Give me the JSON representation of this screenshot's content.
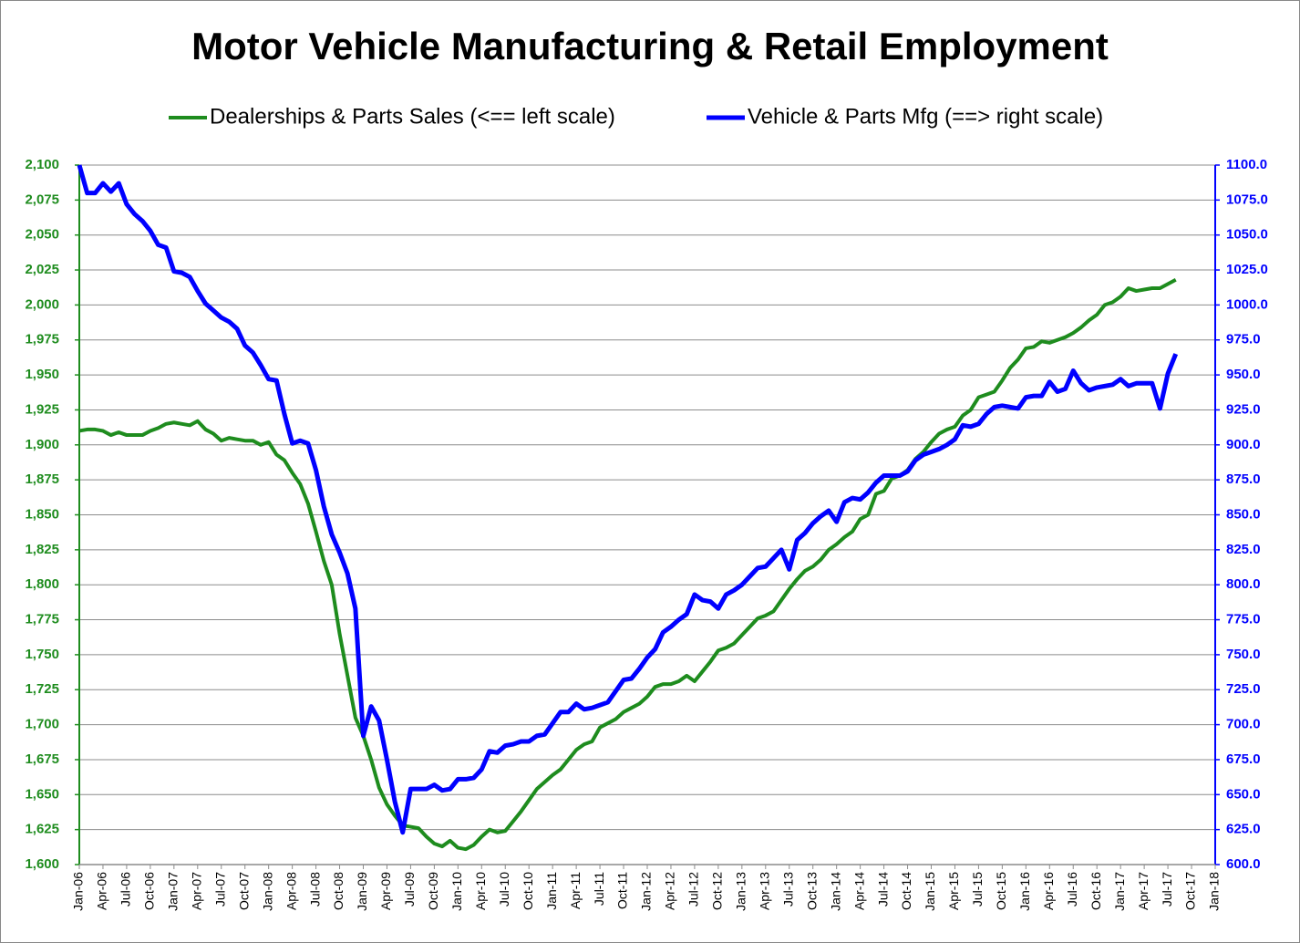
{
  "chart_data": {
    "type": "line",
    "title": "Motor Vehicle Manufacturing & Retail Employment",
    "legend": "top",
    "grid": true,
    "categories": [
      "Jan-06",
      null,
      null,
      "Apr-06",
      null,
      null,
      "Jul-06",
      null,
      null,
      "Oct-06",
      null,
      null,
      "Jan-07",
      null,
      null,
      "Apr-07",
      null,
      null,
      "Jul-07",
      null,
      null,
      "Oct-07",
      null,
      null,
      "Jan-08",
      null,
      null,
      "Apr-08",
      null,
      null,
      "Jul-08",
      null,
      null,
      "Oct-08",
      null,
      null,
      "Jan-09",
      null,
      null,
      "Apr-09",
      null,
      null,
      "Jul-09",
      null,
      null,
      "Oct-09",
      null,
      null,
      "Jan-10",
      null,
      null,
      "Apr-10",
      null,
      null,
      "Jul-10",
      null,
      null,
      "Oct-10",
      null,
      null,
      "Jan-11",
      null,
      null,
      "Apr-11",
      null,
      null,
      "Jul-11",
      null,
      null,
      "Oct-11",
      null,
      null,
      "Jan-12",
      null,
      null,
      "Apr-12",
      null,
      null,
      "Jul-12",
      null,
      null,
      "Oct-12",
      null,
      null,
      "Jan-13",
      null,
      null,
      "Apr-13",
      null,
      null,
      "Jul-13",
      null,
      null,
      "Oct-13",
      null,
      null,
      "Jan-14",
      null,
      null,
      "Apr-14",
      null,
      null,
      "Jul-14",
      null,
      null,
      "Oct-14",
      null,
      null,
      "Jan-15",
      null,
      null,
      "Apr-15",
      null,
      null,
      "Jul-15",
      null,
      null,
      "Oct-15",
      null,
      null,
      "Jan-16",
      null,
      null,
      "Apr-16",
      null,
      null,
      "Jul-16",
      null,
      null,
      "Oct-16",
      null,
      null,
      "Jan-17",
      null,
      null,
      "Apr-17",
      null,
      null,
      "Jul-17",
      null,
      null,
      "Oct-17",
      null,
      null,
      "Jan-18"
    ],
    "series": [
      {
        "name": "Dealerships & Parts Sales (<== left scale)",
        "color": "#1e8c1e",
        "axis": "y",
        "values": [
          1910,
          1911,
          1911,
          1910,
          1907,
          1909,
          1907,
          1907,
          1907,
          1910,
          1912,
          1915,
          1916,
          1915,
          1914,
          1917,
          1911,
          1908,
          1903,
          1905,
          1904,
          1903,
          1903,
          1900,
          1902,
          1893,
          1889,
          1880,
          1872,
          1858,
          1838,
          1817,
          1800,
          1765,
          1735,
          1705,
          1692,
          1675,
          1655,
          1643,
          1635,
          1628,
          1627,
          1626,
          1620,
          1615,
          1613,
          1617,
          1612,
          1611,
          1614,
          1620,
          1625,
          1623,
          1624,
          1631,
          1638,
          1646,
          1654,
          1659,
          1664,
          1668,
          1675,
          1682,
          1686,
          1688,
          1698,
          1701,
          1704,
          1709,
          1712,
          1715,
          1720,
          1727,
          1729,
          1729,
          1731,
          1735,
          1731,
          1738,
          1745,
          1753,
          1755,
          1758,
          1764,
          1770,
          1776,
          1778,
          1781,
          1789,
          1797,
          1804,
          1810,
          1813,
          1818,
          1825,
          1829,
          1834,
          1838,
          1847,
          1850,
          1865,
          1867,
          1876,
          1878,
          1882,
          1890,
          1895,
          1902,
          1908,
          1911,
          1913,
          1921,
          1925,
          1934,
          1936,
          1938,
          1946,
          1955,
          1961,
          1969,
          1970,
          1974,
          1973,
          1975,
          1977,
          1980,
          1984,
          1989,
          1993,
          2000,
          2002,
          2006,
          2012,
          2010,
          2011,
          2012,
          2012,
          2015,
          2018,
          null,
          null,
          null,
          null,
          null
        ]
      },
      {
        "name": "Vehicle & Parts Mfg (==> right scale)",
        "color": "#0000ff",
        "axis": "y2",
        "values": [
          1100,
          1080,
          1080,
          1087,
          1081,
          1087,
          1072,
          1065,
          1060,
          1053,
          1043,
          1041,
          1024,
          1023,
          1020,
          1010,
          1001,
          996,
          991,
          988,
          983,
          971,
          966,
          957,
          947,
          946,
          922,
          901,
          903,
          901,
          882,
          856,
          836,
          823,
          808,
          783,
          692,
          713,
          703,
          675,
          645,
          623,
          654,
          654,
          654,
          657,
          653,
          654,
          661,
          661,
          662,
          668,
          681,
          680,
          685,
          686,
          688,
          688,
          692,
          693,
          701,
          709,
          709,
          715,
          711,
          712,
          714,
          716,
          724,
          732,
          733,
          740,
          748,
          754,
          766,
          770,
          775,
          779,
          793,
          789,
          788,
          783,
          793,
          796,
          800,
          806,
          812,
          813,
          819,
          825,
          811,
          832,
          837,
          844,
          849,
          853,
          845,
          859,
          862,
          861,
          866,
          873,
          878,
          878,
          878,
          881,
          889,
          893,
          895,
          897,
          900,
          904,
          914,
          913,
          915,
          922,
          927,
          928,
          927,
          926,
          934,
          935,
          935,
          945,
          938,
          940,
          953,
          944,
          939,
          941,
          942,
          943,
          947,
          942,
          944,
          944,
          944,
          926,
          951,
          965,
          null,
          null,
          null,
          null,
          null
        ]
      }
    ],
    "ylim": [
      1600,
      2100
    ],
    "yticks": [
      {
        "value": 1600,
        "label": "1,600"
      },
      {
        "value": 1625,
        "label": "1,625"
      },
      {
        "value": 1650,
        "label": "1,650"
      },
      {
        "value": 1675,
        "label": "1,675"
      },
      {
        "value": 1700,
        "label": "1,700"
      },
      {
        "value": 1725,
        "label": "1,725"
      },
      {
        "value": 1750,
        "label": "1,750"
      },
      {
        "value": 1775,
        "label": "1,775"
      },
      {
        "value": 1800,
        "label": "1,800"
      },
      {
        "value": 1825,
        "label": "1,825"
      },
      {
        "value": 1850,
        "label": "1,850"
      },
      {
        "value": 1875,
        "label": "1,875"
      },
      {
        "value": 1900,
        "label": "1,900"
      },
      {
        "value": 1925,
        "label": "1,925"
      },
      {
        "value": 1950,
        "label": "1,950"
      },
      {
        "value": 1975,
        "label": "1,975"
      },
      {
        "value": 2000,
        "label": "2,000"
      },
      {
        "value": 2025,
        "label": "2,025"
      },
      {
        "value": 2050,
        "label": "2,050"
      },
      {
        "value": 2075,
        "label": "2,075"
      },
      {
        "value": 2100,
        "label": "2,100"
      }
    ],
    "y2lim": [
      600,
      1100
    ],
    "y2ticks": [
      {
        "value": 600,
        "label": "600.0"
      },
      {
        "value": 625,
        "label": "625.0"
      },
      {
        "value": 650,
        "label": "650.0"
      },
      {
        "value": 675,
        "label": "675.0"
      },
      {
        "value": 700,
        "label": "700.0"
      },
      {
        "value": 725,
        "label": "725.0"
      },
      {
        "value": 750,
        "label": "750.0"
      },
      {
        "value": 775,
        "label": "775.0"
      },
      {
        "value": 800,
        "label": "800.0"
      },
      {
        "value": 825,
        "label": "825.0"
      },
      {
        "value": 850,
        "label": "850.0"
      },
      {
        "value": 875,
        "label": "875.0"
      },
      {
        "value": 900,
        "label": "900.0"
      },
      {
        "value": 925,
        "label": "925.0"
      },
      {
        "value": 950,
        "label": "950.0"
      },
      {
        "value": 975,
        "label": "975.0"
      },
      {
        "value": 1000,
        "label": "1000.0"
      },
      {
        "value": 1025,
        "label": "1025.0"
      },
      {
        "value": 1050,
        "label": "1050.0"
      },
      {
        "value": 1075,
        "label": "1075.0"
      },
      {
        "value": 1100,
        "label": "1100.0"
      }
    ],
    "yaxis_color": "#1e8c1e",
    "y2axis_color": "#0000ff"
  }
}
